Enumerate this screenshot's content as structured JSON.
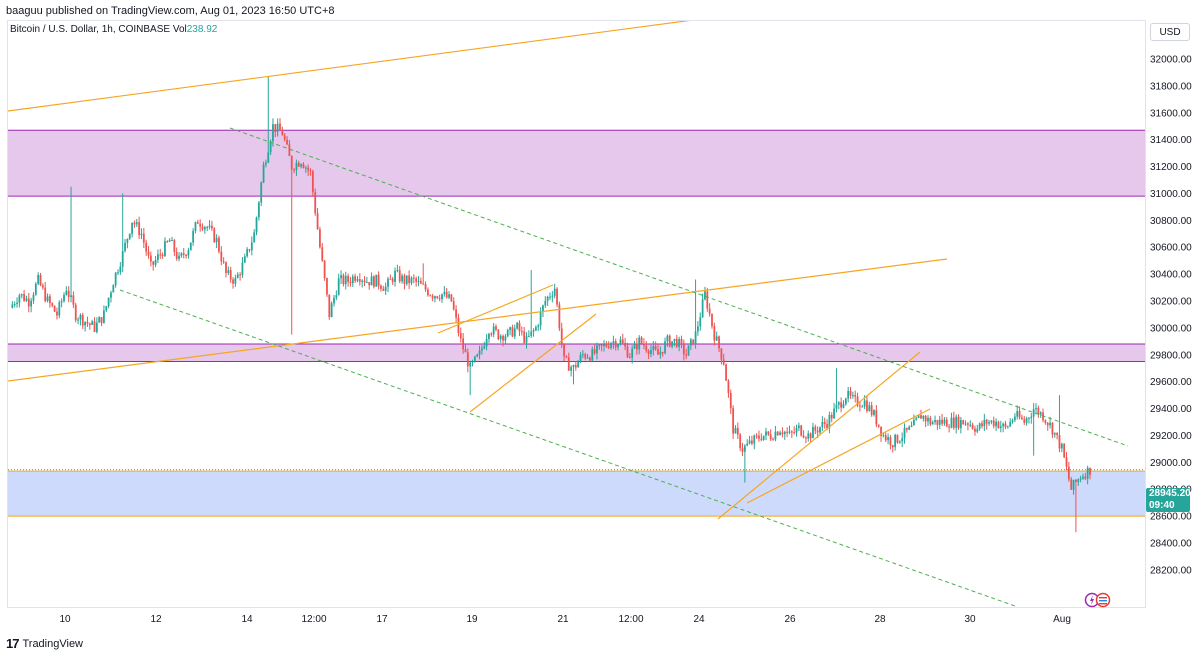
{
  "header": {
    "published_text": "baaguu published on TradingView.com, Aug 01, 2023 16:50 UTC+8"
  },
  "symbol": {
    "description": "Bitcoin / U.S. Dollar, 1h, COINBASE",
    "vol_label": "Vol",
    "vol_value": "238.92"
  },
  "axis": {
    "currency": "USD",
    "price_ticks": [
      "32000.00",
      "31800.00",
      "31600.00",
      "31400.00",
      "31200.00",
      "31000.00",
      "30800.00",
      "30600.00",
      "30400.00",
      "30200.00",
      "30000.00",
      "29800.00",
      "29600.00",
      "29400.00",
      "29200.00",
      "29000.00",
      "28800.00",
      "28600.00",
      "28400.00",
      "28200.00"
    ],
    "time_ticks": [
      "10",
      "12",
      "14",
      "12:00",
      "17",
      "19",
      "21",
      "12:00",
      "24",
      "26",
      "28",
      "30",
      "Aug"
    ]
  },
  "current_price": {
    "price": "28945.20",
    "countdown": "09:40"
  },
  "footer": {
    "brand": "TradingView"
  },
  "colors": {
    "up": "#26a69a",
    "down": "#ef5350",
    "trendline": "#f5a623",
    "channel": "#4caf50",
    "zone_purple": "#e1bee7",
    "zone_blue": "#c5d3fb"
  },
  "chart_data": {
    "type": "candlestick",
    "title": "Bitcoin / U.S. Dollar, 1h, COINBASE",
    "ylim": [
      28100,
      32150
    ],
    "x_ticks": [
      "10",
      "12",
      "14",
      "12:00",
      "17",
      "19",
      "21",
      "12:00",
      "24",
      "26",
      "28",
      "30",
      "Aug"
    ],
    "path_close": [
      [
        0,
        30150
      ],
      [
        4,
        30250
      ],
      [
        8,
        30200
      ],
      [
        12,
        30350
      ],
      [
        16,
        30200
      ],
      [
        20,
        30100
      ],
      [
        24,
        30300
      ],
      [
        28,
        30100
      ],
      [
        32,
        30050
      ],
      [
        36,
        30000
      ],
      [
        40,
        30100
      ],
      [
        44,
        30350
      ],
      [
        48,
        30550
      ],
      [
        52,
        30800
      ],
      [
        56,
        30700
      ],
      [
        60,
        30450
      ],
      [
        64,
        30550
      ],
      [
        68,
        30650
      ],
      [
        72,
        30500
      ],
      [
        76,
        30600
      ],
      [
        80,
        30800
      ],
      [
        84,
        30750
      ],
      [
        88,
        30650
      ],
      [
        92,
        30400
      ],
      [
        96,
        30350
      ],
      [
        100,
        30500
      ],
      [
        104,
        30700
      ],
      [
        108,
        31200
      ],
      [
        112,
        31500
      ],
      [
        116,
        31450
      ],
      [
        120,
        31200
      ],
      [
        124,
        31250
      ],
      [
        128,
        31150
      ],
      [
        132,
        30600
      ],
      [
        136,
        30100
      ],
      [
        140,
        30350
      ],
      [
        144,
        30350
      ],
      [
        148,
        30400
      ],
      [
        152,
        30350
      ],
      [
        156,
        30350
      ],
      [
        160,
        30300
      ],
      [
        164,
        30400
      ],
      [
        168,
        30350
      ],
      [
        172,
        30350
      ],
      [
        176,
        30300
      ],
      [
        180,
        30250
      ],
      [
        184,
        30250
      ],
      [
        188,
        30200
      ],
      [
        192,
        29900
      ],
      [
        196,
        29700
      ],
      [
        200,
        29800
      ],
      [
        204,
        30000
      ],
      [
        208,
        29950
      ],
      [
        212,
        29950
      ],
      [
        216,
        30000
      ],
      [
        220,
        29900
      ],
      [
        224,
        30000
      ],
      [
        228,
        30200
      ],
      [
        232,
        30300
      ],
      [
        236,
        29750
      ],
      [
        240,
        29700
      ],
      [
        244,
        29800
      ],
      [
        248,
        29800
      ],
      [
        252,
        29850
      ],
      [
        256,
        29900
      ],
      [
        260,
        29900
      ],
      [
        264,
        29800
      ],
      [
        268,
        29900
      ],
      [
        272,
        29850
      ],
      [
        276,
        29800
      ],
      [
        280,
        29900
      ],
      [
        284,
        29900
      ],
      [
        288,
        29800
      ],
      [
        292,
        29950
      ],
      [
        296,
        30250
      ],
      [
        300,
        29950
      ],
      [
        304,
        29750
      ],
      [
        308,
        29250
      ],
      [
        312,
        29100
      ],
      [
        316,
        29150
      ],
      [
        320,
        29200
      ],
      [
        324,
        29200
      ],
      [
        328,
        29250
      ],
      [
        332,
        29200
      ],
      [
        336,
        29250
      ],
      [
        340,
        29200
      ],
      [
        344,
        29250
      ],
      [
        348,
        29300
      ],
      [
        352,
        29400
      ],
      [
        356,
        29500
      ],
      [
        360,
        29450
      ],
      [
        364,
        29450
      ],
      [
        368,
        29350
      ],
      [
        372,
        29200
      ],
      [
        376,
        29150
      ],
      [
        380,
        29200
      ],
      [
        384,
        29250
      ],
      [
        388,
        29350
      ],
      [
        392,
        29300
      ],
      [
        396,
        29300
      ],
      [
        400,
        29300
      ],
      [
        404,
        29300
      ],
      [
        408,
        29300
      ],
      [
        412,
        29250
      ],
      [
        416,
        29300
      ],
      [
        420,
        29300
      ],
      [
        424,
        29250
      ],
      [
        428,
        29350
      ],
      [
        432,
        29300
      ],
      [
        436,
        29400
      ],
      [
        440,
        29350
      ],
      [
        444,
        29250
      ],
      [
        448,
        29100
      ],
      [
        452,
        28800
      ],
      [
        456,
        28900
      ],
      [
        460,
        28945
      ]
    ]
  }
}
